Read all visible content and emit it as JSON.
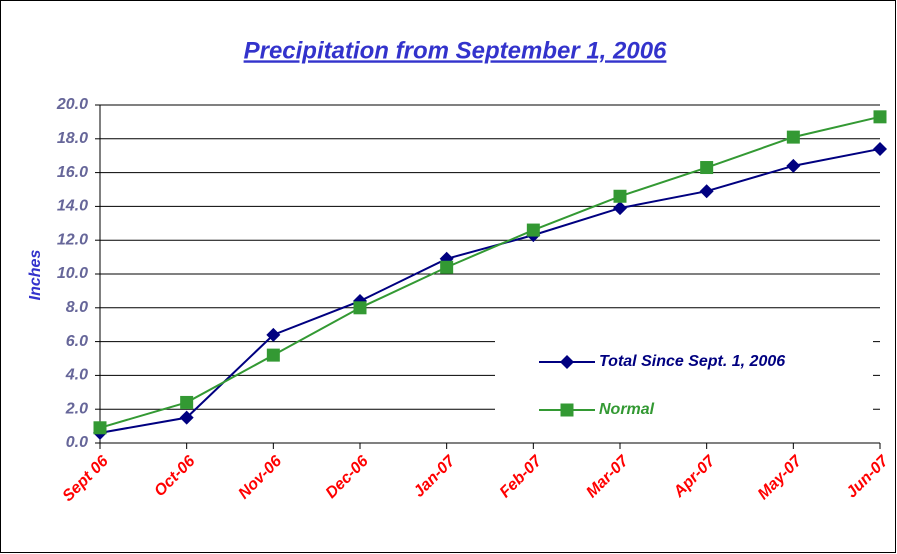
{
  "chart_data": {
    "type": "line",
    "title": "Precipitation from September 1, 2006",
    "y_label": "Inches",
    "categories": [
      "Sept 06",
      "Oct-06",
      "Nov-06",
      "Dec-06",
      "Jan-07",
      "Feb-07",
      "Mar-07",
      "Apr-07",
      "May-07",
      "Jun-07"
    ],
    "series": [
      {
        "name": "Total Since Sept. 1, 2006",
        "color": "#000080",
        "marker": "diamond",
        "values": [
          0.6,
          1.5,
          6.4,
          8.4,
          10.9,
          12.3,
          13.9,
          14.9,
          16.4,
          17.4
        ]
      },
      {
        "name": "Normal",
        "color": "#339933",
        "marker": "square",
        "values": [
          0.9,
          2.4,
          5.2,
          8.0,
          10.4,
          12.6,
          14.6,
          16.3,
          18.1,
          19.3
        ]
      }
    ],
    "ylim": [
      0,
      20
    ],
    "yticks": [
      {
        "value": 0,
        "label": "0.0"
      },
      {
        "value": 2,
        "label": "2.0"
      },
      {
        "value": 4,
        "label": "4.0"
      },
      {
        "value": 6,
        "label": "6.0"
      },
      {
        "value": 8,
        "label": "8.0"
      },
      {
        "value": 10,
        "label": "10.0"
      },
      {
        "value": 12,
        "label": "12.0"
      },
      {
        "value": 14,
        "label": "14.0"
      },
      {
        "value": 16,
        "label": "16.0"
      },
      {
        "value": 18,
        "label": "18.0"
      },
      {
        "value": 20,
        "label": "20.0"
      }
    ],
    "grid": true,
    "legend": "lower right"
  }
}
